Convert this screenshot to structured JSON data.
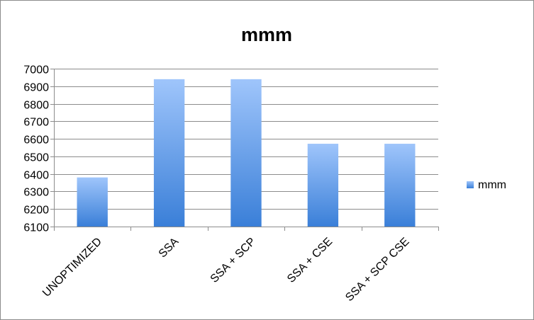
{
  "chart_data": {
    "type": "bar",
    "title": "mmm",
    "categories": [
      "UNOPTIMIZED",
      "SSA",
      "SSA + SCP",
      "SSA + CSE",
      "SSA + SCP CSE"
    ],
    "series": [
      {
        "name": "mmm",
        "values": [
          6380,
          6940,
          6940,
          6572,
          6572
        ]
      }
    ],
    "ylim": [
      6100,
      7000
    ],
    "yticks": [
      6100,
      6200,
      6300,
      6400,
      6500,
      6600,
      6700,
      6800,
      6900,
      7000
    ],
    "xlabel": "",
    "ylabel": "",
    "grid": true,
    "legend": "right",
    "colors": {
      "bar_top": "#9fc5fb",
      "bar_bottom": "#3a7fd8",
      "grid": "#8c8c8c",
      "axis": "#8c8c8c"
    }
  }
}
